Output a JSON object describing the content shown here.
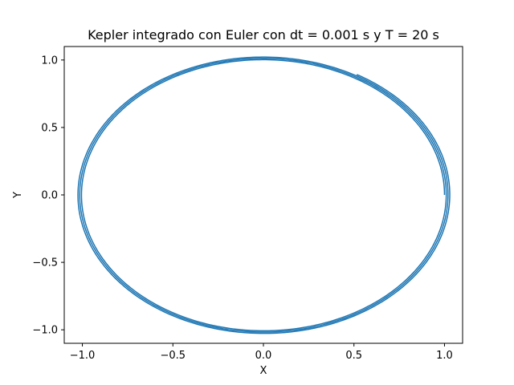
{
  "chart_data": {
    "type": "line",
    "title": "Kepler integrado con Euler con dt = 0.001 s y T = 20 s",
    "xlabel": "X",
    "ylabel": "Y",
    "xlim": [
      -1.1,
      1.1
    ],
    "ylim": [
      -1.1,
      1.1
    ],
    "xticks": [
      -1.0,
      -0.5,
      0.0,
      0.5,
      1.0
    ],
    "xtick_labels": [
      "−1.0",
      "−0.5",
      "0.0",
      "0.5",
      "1.0"
    ],
    "yticks": [
      -1.0,
      -0.5,
      0.0,
      0.5,
      1.0
    ],
    "ytick_labels": [
      "−1.0",
      "−0.5",
      "0.0",
      "0.5",
      "1.0"
    ],
    "grid": false,
    "legend": "none",
    "line_color": "#1f77b4",
    "series": [
      {
        "description_points": "spiral orbit: x = r(t)·cos(t), y = r(t)·sin(t)",
        "x": [
          1.0,
          0.866,
          0.5,
          0.0,
          -0.5,
          -0.866,
          -1.0,
          -0.866,
          -0.5,
          0.0,
          0.5,
          0.866,
          1.01,
          0.874,
          0.505,
          0.0,
          -0.505,
          -0.874,
          -1.01,
          -0.874,
          -0.505,
          0.0,
          0.505,
          0.874,
          1.02,
          0.883,
          0.51,
          0.0,
          -0.51,
          -0.883,
          -1.02,
          -0.883,
          -0.51,
          0.0,
          0.51,
          0.883,
          1.03,
          0.867
        ],
        "y": [
          0.0,
          0.5,
          0.866,
          1.0,
          0.866,
          0.5,
          0.0,
          -0.5,
          -0.866,
          -1.0,
          -0.866,
          -0.5,
          0.0,
          0.505,
          0.874,
          1.01,
          0.874,
          0.505,
          0.0,
          -0.505,
          -0.874,
          -1.01,
          -0.874,
          -0.505,
          0.0,
          0.51,
          0.883,
          1.02,
          0.883,
          0.51,
          0.0,
          -0.51,
          -0.883,
          -1.02,
          -0.883,
          -0.51,
          0.0,
          0.566
        ]
      }
    ]
  }
}
